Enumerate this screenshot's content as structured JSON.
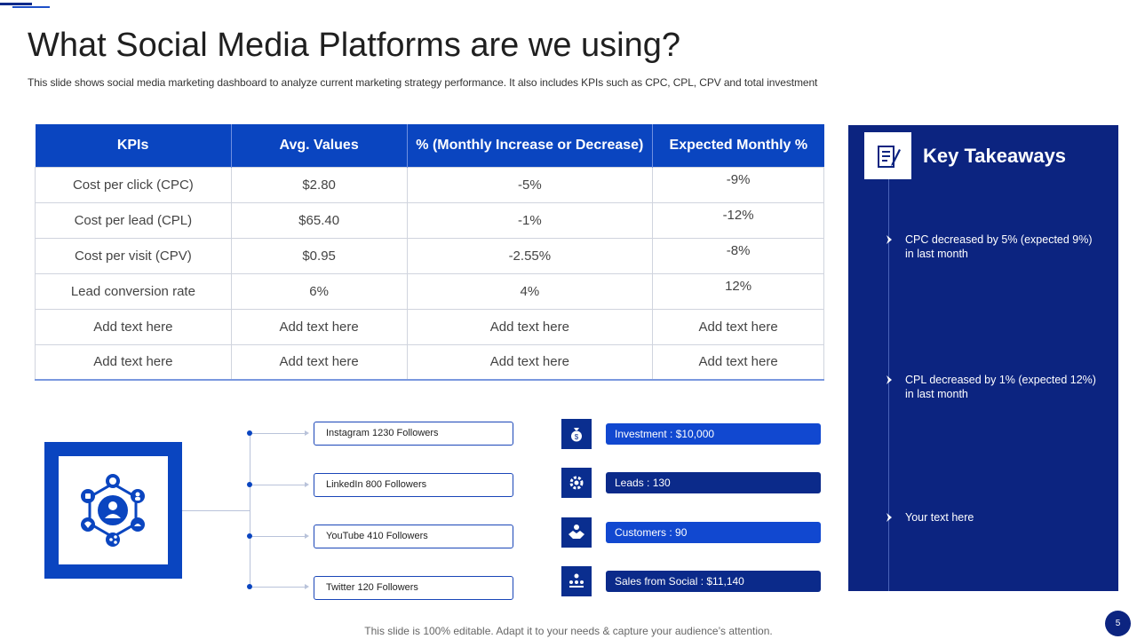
{
  "header": {
    "title": "What Social Media Platforms are we using?",
    "subtitle": "This slide shows social media marketing dashboard to analyze current marketing strategy performance. It also includes KPIs such as CPC, CPL, CPV and total investment"
  },
  "kpi_table": {
    "columns": [
      "KPIs",
      "Avg. Values",
      "% (Monthly Increase or Decrease)",
      "Expected Monthly %"
    ],
    "rows": [
      [
        "Cost per click (CPC)",
        "$2.80",
        "-5%",
        "-9%"
      ],
      [
        "Cost per lead (CPL)",
        "$65.40",
        "-1%",
        "-12%"
      ],
      [
        "Cost per visit (CPV)",
        "$0.95",
        "-2.55%",
        "-8%"
      ],
      [
        "Lead conversion rate",
        "6%",
        "4%",
        "12%"
      ],
      [
        "Add text here",
        "Add text here",
        "Add text here",
        "Add text here"
      ],
      [
        "Add text here",
        "Add text here",
        "Add text here",
        "Add text here"
      ]
    ]
  },
  "followers": [
    "Instagram 1230 Followers",
    "LinkedIn  800 Followers",
    "YouTube 410 Followers",
    "Twitter 120 Followers"
  ],
  "metrics": [
    {
      "label": "Investment : $10,000",
      "icon": "money-bag-icon"
    },
    {
      "label": "Leads : 130",
      "icon": "gear-network-icon"
    },
    {
      "label": "Customers : 90",
      "icon": "handshake-icon"
    },
    {
      "label": "Sales from Social : $11,140",
      "icon": "team-icon"
    }
  ],
  "takeaways": {
    "title": "Key Takeaways",
    "items": [
      "CPC decreased by 5% (expected 9%) in last month",
      "CPL decreased by 1% (expected 12%) in last month",
      "Your text here"
    ]
  },
  "footer": {
    "note": "This slide is 100% editable. Adapt it to your needs & capture your audience’s attention.",
    "page_number": "5"
  },
  "colors": {
    "primary_blue": "#0a45c0",
    "navy": "#0c2480",
    "text": "#333333"
  }
}
